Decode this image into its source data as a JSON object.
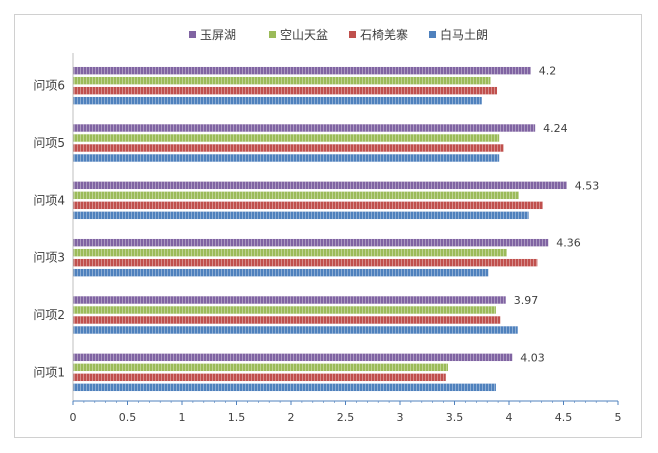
{
  "chart_data": {
    "type": "bar",
    "orientation": "horizontal",
    "categories": [
      "问项1",
      "问项2",
      "问项3",
      "问项4",
      "问项5",
      "问项6"
    ],
    "series": [
      {
        "name": "白马土朗",
        "color": "#4f81bd",
        "values": [
          3.88,
          4.08,
          3.81,
          4.18,
          3.91,
          3.75
        ]
      },
      {
        "name": "石椅羌寨",
        "color": "#c0504d",
        "values": [
          3.42,
          3.92,
          4.26,
          4.31,
          3.95,
          3.89
        ]
      },
      {
        "name": "空山天盆",
        "color": "#9bbb59",
        "values": [
          3.44,
          3.88,
          3.98,
          4.09,
          3.91,
          3.83
        ]
      },
      {
        "name": "玉屏湖",
        "color": "#8064a2",
        "values": [
          4.03,
          3.97,
          4.36,
          4.53,
          4.24,
          4.2
        ]
      }
    ],
    "data_labels": {
      "series": "玉屏湖",
      "values": [
        "4.03",
        "3.97",
        "4.36",
        "4.53",
        "4.24",
        "4.2"
      ]
    },
    "xlim": [
      0,
      5
    ],
    "xticks": [
      "0",
      "0.5",
      "1",
      "1.5",
      "2",
      "2.5",
      "3",
      "3.5",
      "4",
      "4.5",
      "5"
    ],
    "legend_position": "top",
    "grid": false,
    "title": "",
    "xlabel": "",
    "ylabel": ""
  }
}
